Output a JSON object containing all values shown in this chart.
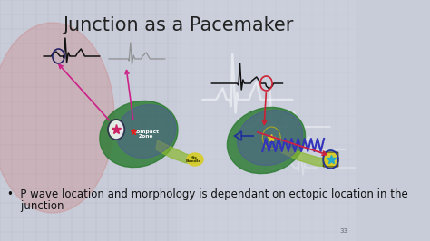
{
  "title": "Junction as a Pacemaker",
  "title_fontsize": 15,
  "title_color": "#222222",
  "bg_color": "#c8ccd8",
  "bullet_text_line1": "•  P wave location and morphology is dependant on ectopic location in the",
  "bullet_text_line2": "    junction",
  "bullet_fontsize": 8.5,
  "bullet_color": "#111111",
  "slide_number": "33",
  "heart_color": "#d89090",
  "heart_alpha": 0.5,
  "grid_color": "#b0b8cc",
  "ecg_bg_color": "#d0d5e0"
}
